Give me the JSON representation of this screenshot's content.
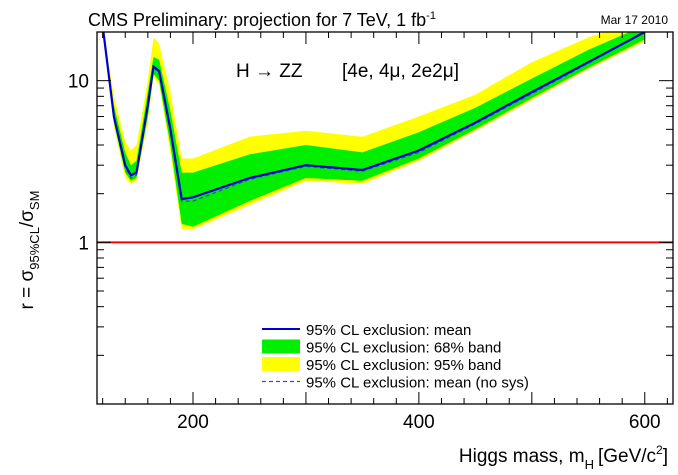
{
  "header": {
    "title_main": "CMS Preliminary: projection for 7 TeV, 1 fb",
    "title_sup": "-1",
    "date": "Mar 17 2010"
  },
  "annotation": {
    "process": "H → ZZ",
    "channels": "[4e, 4μ, 2e2μ]"
  },
  "axes": {
    "x_label_main": "Higgs mass, m",
    "x_label_sub": "H",
    "x_label_unit": "[GeV/c",
    "x_label_unit_sup": "2",
    "x_label_close": "]",
    "y_label_main": "r = σ",
    "y_label_sub1": "95%CL",
    "y_label_slash": "/σ",
    "y_label_sub2": "SM"
  },
  "colors": {
    "band95": "#ffff00",
    "band68": "#00ee00",
    "mean": "#0000cc",
    "nosys": "#4444cc",
    "reference": "#ff0000"
  },
  "chart_data": {
    "type": "line",
    "xlim": [
      115,
      625
    ],
    "ylim": [
      0.1,
      20
    ],
    "y_scale": "log",
    "x_ticks": [
      200,
      400,
      600
    ],
    "y_ticks": [
      {
        "value": 1,
        "label": "1"
      },
      {
        "value": 10,
        "label": "10"
      }
    ],
    "reference_line": 1,
    "legend": {
      "placement": "bottom-center",
      "entries": [
        {
          "label": "95% CL exclusion: mean",
          "style": "line",
          "color": "#0000cc"
        },
        {
          "label": "95% CL exclusion: 68% band",
          "style": "fill",
          "color": "#00ee00"
        },
        {
          "label": "95% CL exclusion: 95% band",
          "style": "fill",
          "color": "#ffff00"
        },
        {
          "label": "95% CL exclusion: mean (no sys)",
          "style": "dashed",
          "color": "#4444cc"
        }
      ]
    },
    "x": [
      120,
      130,
      140,
      145,
      150,
      160,
      165,
      170,
      180,
      190,
      200,
      250,
      300,
      350,
      400,
      450,
      500,
      550,
      600
    ],
    "series": [
      {
        "name": "95% CL exclusion: mean",
        "values": [
          22,
          6.0,
          3.0,
          2.6,
          2.7,
          7.0,
          12.2,
          11.5,
          5.0,
          1.85,
          1.9,
          2.5,
          3.0,
          2.8,
          3.7,
          5.5,
          8.5,
          13.0,
          20
        ]
      },
      {
        "name": "95% CL exclusion: mean (no sys)",
        "values": [
          22,
          5.9,
          2.9,
          2.5,
          2.6,
          6.8,
          12.0,
          11.3,
          4.9,
          1.8,
          1.8,
          2.45,
          2.95,
          2.75,
          3.6,
          5.4,
          8.3,
          12.8,
          20
        ]
      },
      {
        "name": "95% CL exclusion: 68% band",
        "low": [
          22,
          5.5,
          2.7,
          2.4,
          2.5,
          6.0,
          11.0,
          10.0,
          4.0,
          1.3,
          1.25,
          1.8,
          2.5,
          2.4,
          3.3,
          5.0,
          7.8,
          12.0,
          18
        ]
      },
      {
        "name": "95% CL exclusion: 68% band",
        "high": [
          22,
          7.0,
          3.6,
          3.0,
          3.2,
          8.5,
          14.0,
          13.5,
          6.5,
          2.7,
          2.7,
          3.5,
          4.0,
          3.6,
          4.8,
          6.8,
          10.3,
          15.5,
          22
        ]
      },
      {
        "name": "95% CL exclusion: 95% band",
        "low": [
          22,
          5.2,
          2.5,
          2.3,
          2.4,
          5.5,
          10.5,
          9.5,
          3.6,
          1.2,
          1.2,
          1.7,
          2.4,
          2.3,
          3.2,
          4.9,
          7.6,
          11.8,
          17.5
        ]
      },
      {
        "name": "95% CL exclusion: 95% band",
        "high": [
          22,
          8.0,
          4.2,
          3.7,
          4.0,
          10.0,
          18.5,
          17.0,
          8.5,
          3.3,
          3.3,
          4.5,
          4.9,
          4.5,
          6.0,
          8.2,
          13.0,
          18.5,
          24
        ]
      }
    ]
  }
}
